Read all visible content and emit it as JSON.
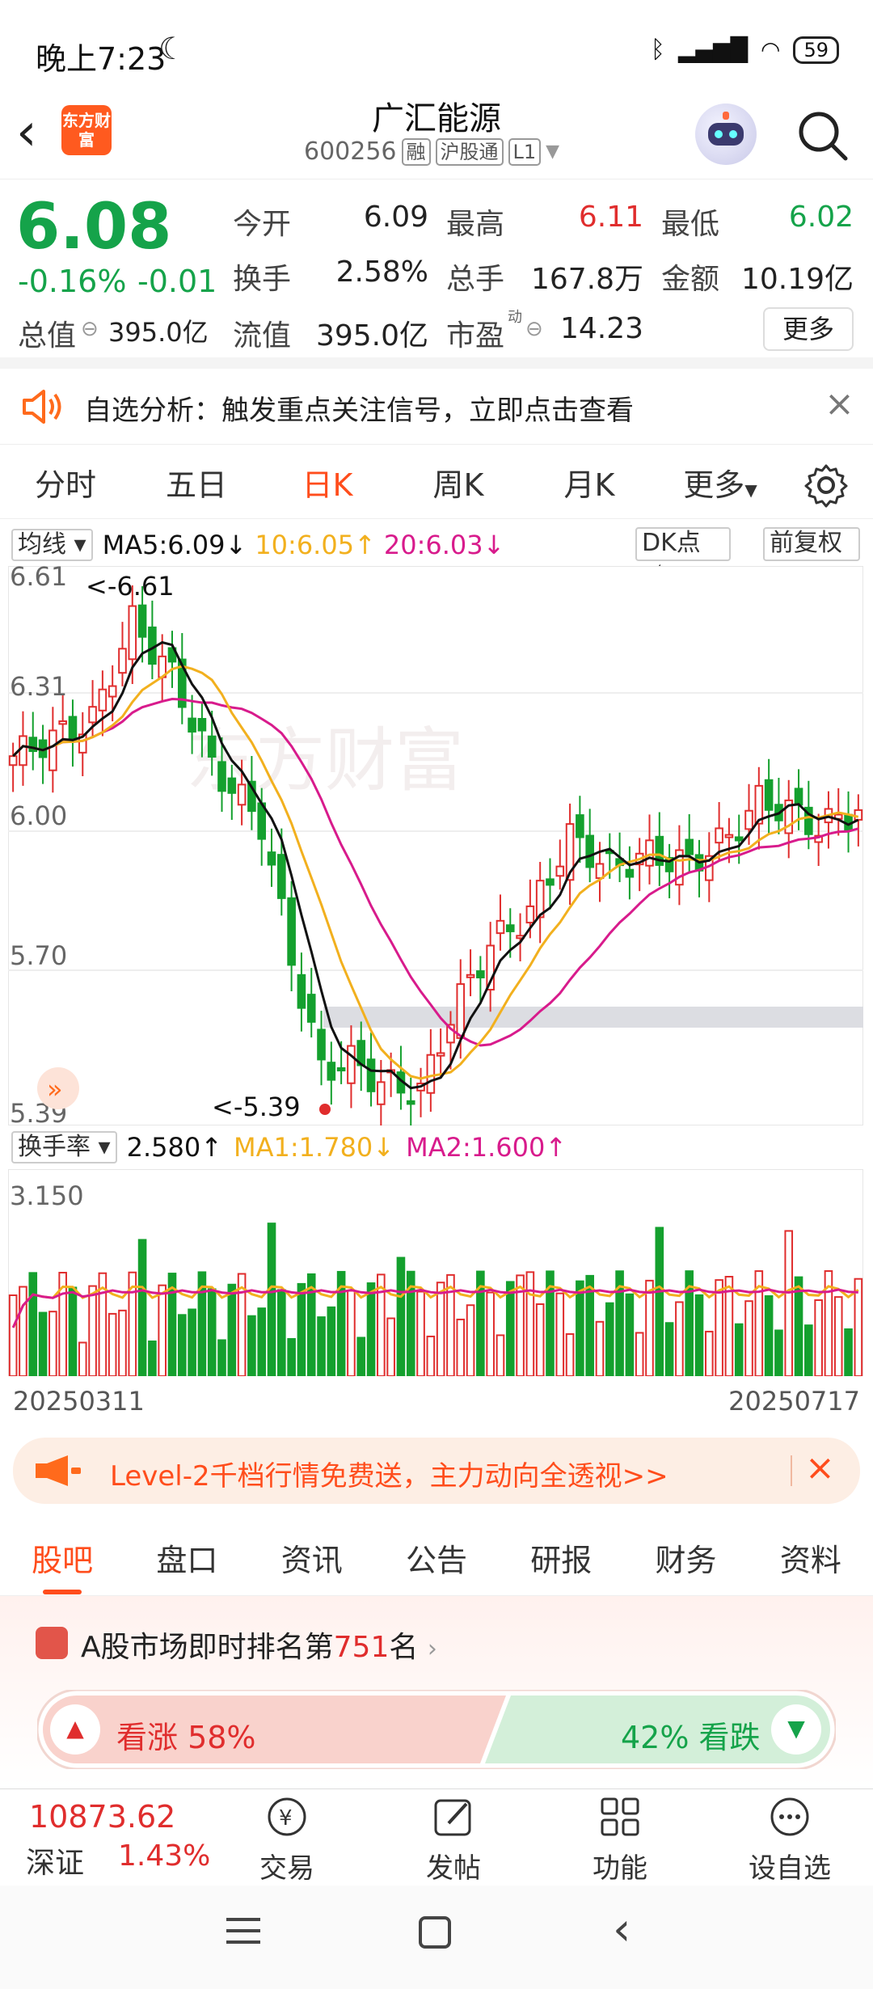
{
  "status_bar": {
    "time": "晚上7:23",
    "battery": "59"
  },
  "header": {
    "logo_text": "东方财富",
    "name": "广汇能源",
    "code": "600256",
    "tags": [
      "融",
      "沪股通",
      "L1"
    ]
  },
  "quote": {
    "price": "6.08",
    "change_pct": "-0.16%",
    "change": "-0.01",
    "rows": [
      [
        {
          "label": "今开",
          "value": "6.09",
          "color": "#222"
        },
        {
          "label": "最高",
          "value": "6.11",
          "color": "#e02d2d"
        },
        {
          "label": "最低",
          "value": "6.02",
          "color": "#15a34a"
        }
      ],
      [
        {
          "label": "换手",
          "value": "2.58%",
          "color": "#222"
        },
        {
          "label": "总手",
          "value": "167.8万",
          "color": "#222"
        },
        {
          "label": "金额",
          "value": "10.19亿",
          "color": "#222"
        }
      ]
    ],
    "total_value_label": "总值",
    "total_value": "395.0亿",
    "float_value_label": "流值",
    "float_value": "395.0亿",
    "pe_label": "市盈",
    "pe_superscript": "动",
    "pe_value": "14.23",
    "more_label": "更多"
  },
  "notice": {
    "text": "自选分析：触发重点关注信号，立即点击查看"
  },
  "chart_tabs": [
    "分时",
    "五日",
    "日K",
    "周K",
    "月K",
    "更多"
  ],
  "active_chart_tab": "日K",
  "indicators": {
    "ma_selector": "均线",
    "ma5": "MA5:6.09↓",
    "ma10": "10:6.05↑",
    "ma20": "20:6.03↓",
    "dk_label": "DK点",
    "fq_label": "前复权",
    "vol_selector": "换手率",
    "vol_value": "2.580↑",
    "vol_ma1": "MA1:1.780↓",
    "vol_ma2": "MA2:1.600↑",
    "colors": {
      "ma5": "#111111",
      "ma10": "#f2b01e",
      "ma20": "#d81b8c",
      "up": "#e02d2d",
      "down": "#14a02e"
    }
  },
  "chart_data": {
    "type": "candlestick",
    "y_ticks": [
      "6.61",
      "6.31",
      "6.00",
      "5.70",
      "5.39"
    ],
    "ylim": [
      5.39,
      6.61
    ],
    "high_marker": "<-6.61",
    "low_marker": "<-5.39",
    "watermark": "东方财富",
    "vol_y_tick": "3.150",
    "x_start": "20250311",
    "x_end": "20250717"
  },
  "promo": {
    "text": "Level-2千档行情免费送，主力动向全透视>>"
  },
  "content_tabs": [
    "股吧",
    "盘口",
    "资讯",
    "公告",
    "研报",
    "财务",
    "资料"
  ],
  "active_content_tab": "股吧",
  "rank": {
    "prefix": "A股市场即时排名第",
    "number": "751",
    "suffix": "名"
  },
  "vote": {
    "up_label": "看涨 58%",
    "down_label": "42% 看跌"
  },
  "bottom_nav": {
    "index_value": "10873.62",
    "index_name": "深证",
    "index_pct": "1.43%",
    "items": [
      "交易",
      "发帖",
      "功能",
      "设自选"
    ]
  }
}
